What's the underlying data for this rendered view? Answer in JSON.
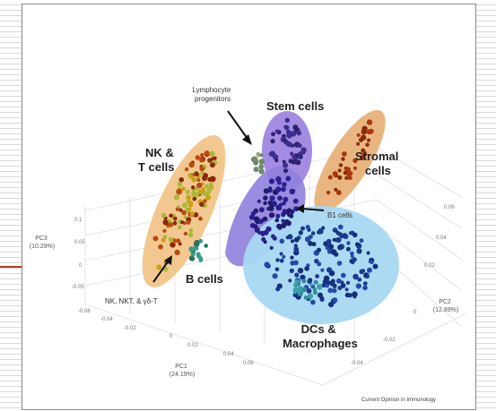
{
  "chart_data": {
    "type": "scatter",
    "projection": "3d",
    "axes": {
      "x": {
        "label": "PC1",
        "variance": "(24.19%)",
        "ticks": [
          "-0.06",
          "-0.04",
          "-0.02",
          "0",
          "0.02",
          "0.04",
          "0.06"
        ]
      },
      "y": {
        "label": "PC2",
        "variance": "(12.89%)",
        "ticks": [
          "-0.04",
          "-0.02",
          "0",
          "0.02",
          "0.04",
          "0.06"
        ]
      },
      "z": {
        "label": "PC3",
        "variance": "(10.29%)",
        "ticks": [
          "0.1",
          "0.05",
          "0",
          "-0.05"
        ]
      }
    },
    "grid": true,
    "series": [
      {
        "name": "NK & T cells",
        "color": "#b84a12",
        "region_color": "#f2c58a"
      },
      {
        "name": "Stem cells",
        "color": "#2d2270",
        "region_color": "#9b7fe0"
      },
      {
        "name": "Stromal cells",
        "color": "#8a2a08",
        "region_color": "#e8b27a"
      },
      {
        "name": "B cells",
        "color": "#1f1a6b",
        "region_color": "#8f7fdc"
      },
      {
        "name": "DCs & Macrophages",
        "color": "#1a3a8c",
        "region_color": "#a8d8f2"
      }
    ],
    "annotations": [
      {
        "text": "Lymphocyte progenitors",
        "lines": [
          "Lymphocyte",
          "progenitors"
        ]
      },
      {
        "text": "B1 cells"
      },
      {
        "text": "NK, NKT, & γδ-T"
      }
    ]
  },
  "labels": {
    "nkt": [
      "NK &",
      "T cells"
    ],
    "stem": "Stem cells",
    "stromal": [
      "Stromal",
      "cells"
    ],
    "bcells": "B cells",
    "dcs": [
      "DCs &",
      "Macrophages"
    ]
  },
  "source": "Current Opinion in Immunology"
}
